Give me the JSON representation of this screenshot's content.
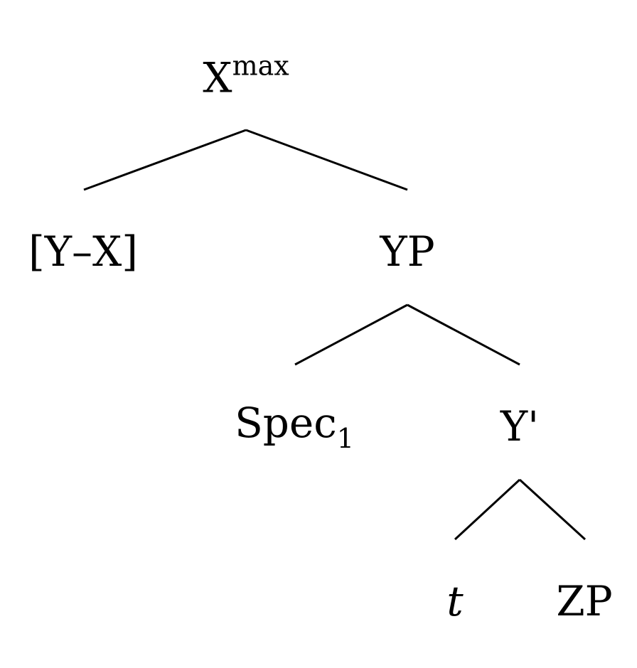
{
  "tree": {
    "root": {
      "label": "X",
      "sup": "max"
    },
    "left_head": {
      "label": "[Y–X]"
    },
    "yp": {
      "label": "YP"
    },
    "spec": {
      "label": "Spec",
      "sub": "1"
    },
    "ybar": {
      "label": "Y'"
    },
    "trace": {
      "label": "t"
    },
    "zp": {
      "label": "ZP"
    }
  },
  "colors": {
    "line": "#000000",
    "text": "#000000",
    "background": "#ffffff"
  }
}
